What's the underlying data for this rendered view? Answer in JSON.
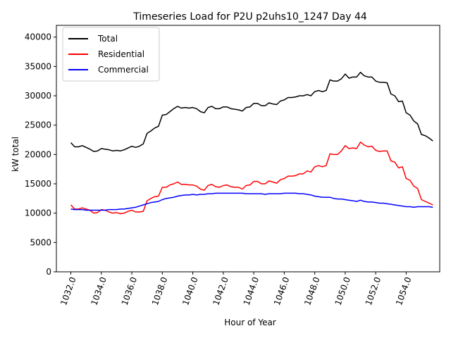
{
  "chart_data": {
    "type": "line",
    "title": "Timeseries Load for P2U p2uhs10_1247  Day 44",
    "xlabel": "Hour of Year",
    "ylabel": "kW total",
    "xlim": [
      1031.05,
      1056.2
    ],
    "ylim": [
      0,
      42000
    ],
    "x_ticks": [
      1032,
      1034,
      1036,
      1038,
      1040,
      1042,
      1044,
      1046,
      1048,
      1050,
      1052,
      1054
    ],
    "x_tick_labels": [
      "1032.0",
      "1034.0",
      "1036.0",
      "1038.0",
      "1040.0",
      "1042.0",
      "1044.0",
      "1046.0",
      "1048.0",
      "1050.0",
      "1052.0",
      "1054.0"
    ],
    "y_ticks": [
      0,
      5000,
      10000,
      15000,
      20000,
      25000,
      30000,
      35000,
      40000
    ],
    "y_tick_labels": [
      "0",
      "5000",
      "10000",
      "15000",
      "20000",
      "25000",
      "30000",
      "35000",
      "40000"
    ],
    "legend_position": "top-left",
    "x_start": 1032,
    "x_step": 0.25,
    "series": [
      {
        "name": "Total",
        "color": "#000000",
        "values": [
          22000,
          21300,
          21300,
          21500,
          21200,
          20900,
          20500,
          20600,
          21000,
          20900,
          20800,
          20600,
          20700,
          20600,
          20800,
          21100,
          21400,
          21200,
          21400,
          21800,
          23600,
          24000,
          24500,
          24800,
          26700,
          26800,
          27300,
          27800,
          28200,
          27900,
          28000,
          27900,
          28000,
          27800,
          27300,
          27100,
          28000,
          28200,
          27800,
          27800,
          28100,
          28100,
          27800,
          27700,
          27600,
          27400,
          28000,
          28100,
          28700,
          28700,
          28300,
          28300,
          28800,
          28600,
          28500,
          29100,
          29300,
          29700,
          29700,
          29800,
          30000,
          30000,
          30200,
          30000,
          30700,
          30900,
          30700,
          30900,
          32700,
          32500,
          32500,
          32900,
          33700,
          33000,
          33200,
          33200,
          34000,
          33400,
          33200,
          33200,
          32500,
          32300,
          32300,
          32200,
          30300,
          30000,
          29000,
          29100,
          27100,
          26700,
          25700,
          25200,
          23400,
          23200,
          22800,
          22300
        ]
      },
      {
        "name": "Residential",
        "color": "#ff0000",
        "values": [
          11400,
          10700,
          10700,
          10900,
          10700,
          10500,
          10000,
          10100,
          10600,
          10500,
          10200,
          10000,
          10100,
          9900,
          10000,
          10300,
          10500,
          10200,
          10200,
          10300,
          12100,
          12500,
          12800,
          12900,
          14400,
          14400,
          14800,
          15000,
          15300,
          14900,
          14900,
          14800,
          14800,
          14600,
          14100,
          13900,
          14700,
          14900,
          14500,
          14400,
          14700,
          14800,
          14500,
          14400,
          14400,
          14100,
          14700,
          14800,
          15400,
          15400,
          15000,
          15000,
          15500,
          15300,
          15100,
          15700,
          15900,
          16300,
          16300,
          16400,
          16700,
          16700,
          17200,
          17000,
          17900,
          18100,
          17900,
          18100,
          20100,
          20000,
          20000,
          20600,
          21500,
          21000,
          21100,
          21000,
          22100,
          21600,
          21300,
          21400,
          20700,
          20500,
          20600,
          20600,
          18900,
          18700,
          17700,
          17900,
          15900,
          15600,
          14600,
          14200,
          12300,
          12000,
          11700,
          11400
        ]
      },
      {
        "name": "Commercial",
        "color": "#0000ff",
        "values": [
          10700,
          10600,
          10600,
          10600,
          10500,
          10500,
          10500,
          10500,
          10500,
          10500,
          10600,
          10600,
          10600,
          10700,
          10700,
          10800,
          10900,
          11000,
          11200,
          11400,
          11600,
          11800,
          11900,
          12000,
          12300,
          12500,
          12600,
          12700,
          12900,
          13000,
          13100,
          13100,
          13200,
          13100,
          13200,
          13200,
          13300,
          13300,
          13400,
          13400,
          13400,
          13400,
          13400,
          13400,
          13400,
          13400,
          13300,
          13300,
          13300,
          13300,
          13300,
          13200,
          13300,
          13300,
          13300,
          13300,
          13400,
          13400,
          13400,
          13400,
          13300,
          13300,
          13200,
          13100,
          12900,
          12800,
          12700,
          12700,
          12700,
          12500,
          12400,
          12400,
          12300,
          12200,
          12100,
          12000,
          12200,
          12000,
          11900,
          11900,
          11800,
          11700,
          11700,
          11600,
          11500,
          11400,
          11300,
          11200,
          11100,
          11100,
          11000,
          11100,
          11100,
          11100,
          11100,
          11000
        ]
      }
    ]
  }
}
